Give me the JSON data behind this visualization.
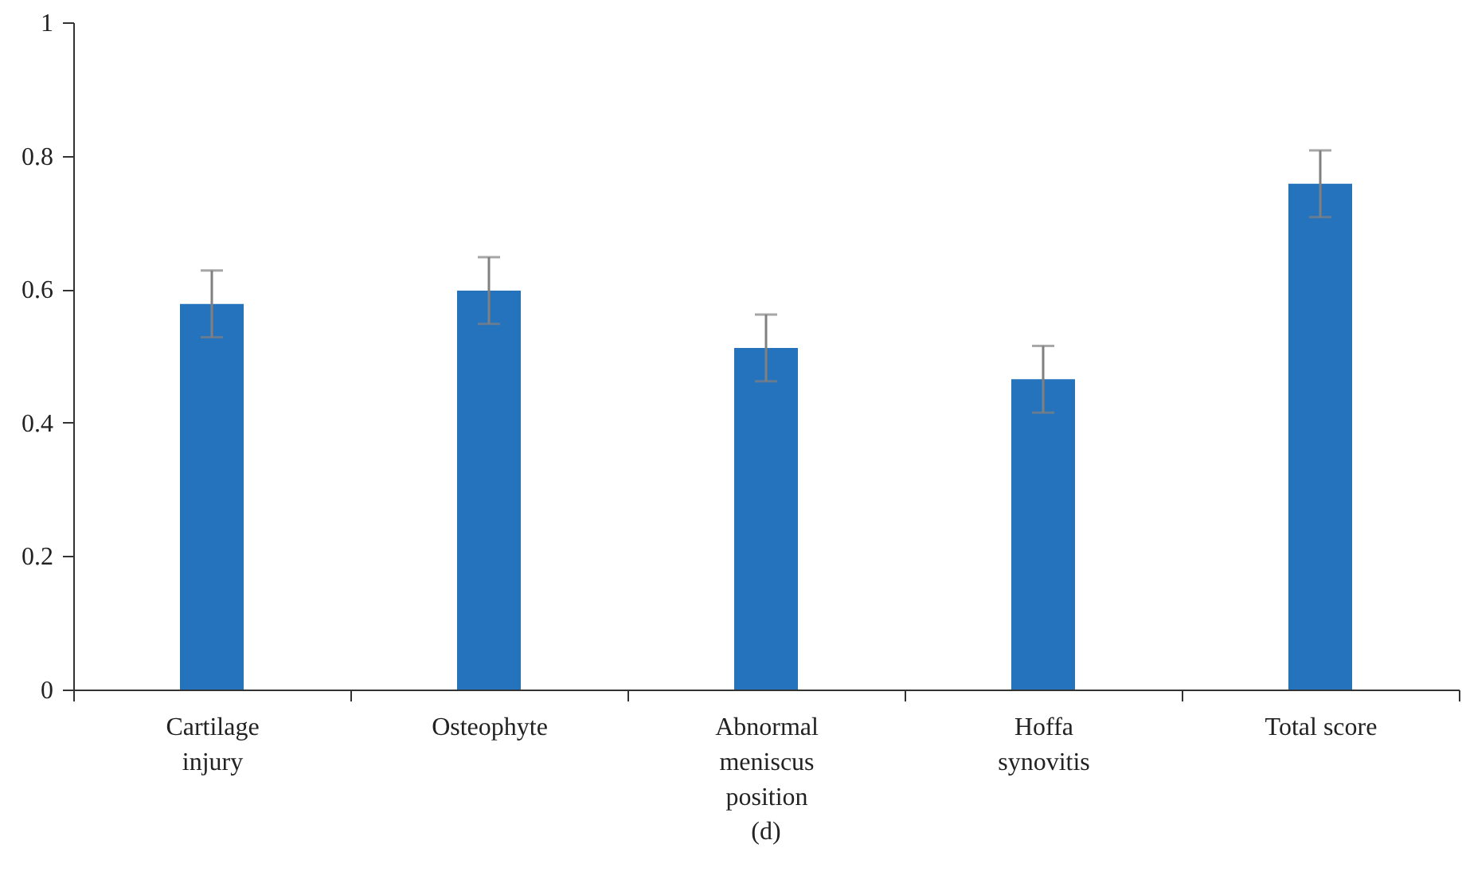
{
  "chart_data": {
    "type": "bar",
    "categories": [
      "Cartilage injury",
      "Osteophyte",
      "Abnormal meniscus position",
      "Hoffa synovitis",
      "Total score"
    ],
    "values": [
      0.578,
      0.598,
      0.512,
      0.465,
      0.758
    ],
    "errors": [
      0.05,
      0.05,
      0.05,
      0.05,
      0.05
    ],
    "color": "#2573bc",
    "ylim": [
      0,
      1
    ],
    "yticks": [
      0,
      0.2,
      0.4,
      0.6,
      0.8,
      1
    ],
    "grid": false,
    "annotations": [
      "(d)"
    ]
  }
}
